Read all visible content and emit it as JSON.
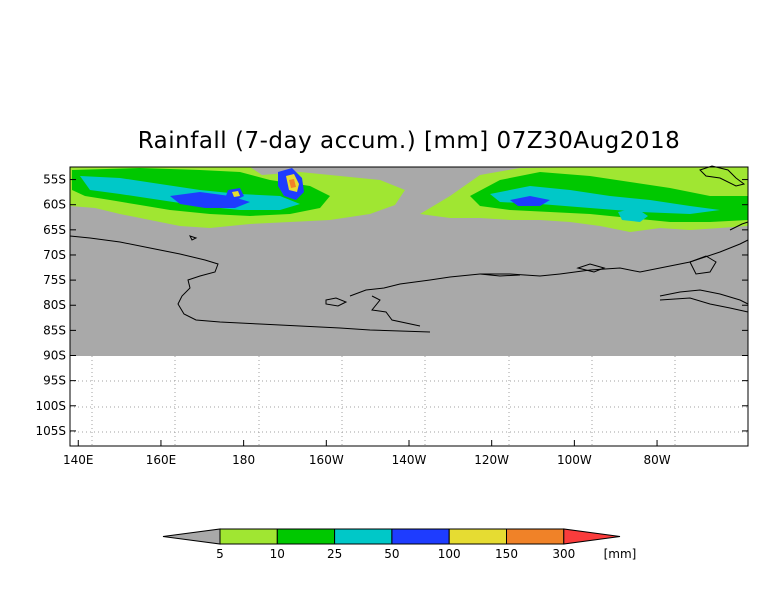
{
  "title": "Rainfall (7-day accum.) [mm] 07Z30Aug2018",
  "map": {
    "lon_labels": [
      "140E",
      "160E",
      "180",
      "160W",
      "140W",
      "120W",
      "100W",
      "80W"
    ],
    "lat_labels": [
      "55S",
      "60S",
      "65S",
      "70S",
      "75S",
      "80S",
      "85S",
      "90S",
      "95S",
      "100S",
      "105S"
    ],
    "lon_values": [
      140,
      160,
      180,
      200,
      220,
      240,
      260,
      280
    ],
    "lat_values": [
      -55,
      -60,
      -65,
      -70,
      -75,
      -80,
      -85,
      -90,
      -95,
      -100,
      -105
    ],
    "lon_range": [
      138,
      302
    ],
    "lat_range": [
      -52.5,
      -108
    ],
    "colors": {
      "land_nodata": "#a9a9a9",
      "coast": "#000000",
      "grid": "#a0a0a0"
    }
  },
  "colorbar": {
    "unit": "[mm]",
    "labels": [
      "5",
      "10",
      "25",
      "50",
      "100",
      "150",
      "300"
    ],
    "colors": [
      "#a9a9a9",
      "#a0e632",
      "#00c800",
      "#00c8c8",
      "#1e3cff",
      "#e6dc32",
      "#f08228",
      "#fa3c3c"
    ]
  }
}
